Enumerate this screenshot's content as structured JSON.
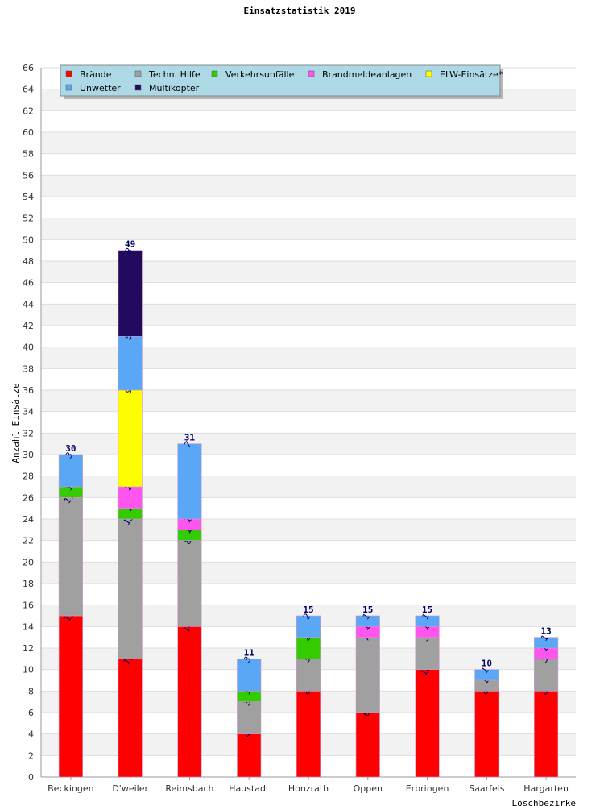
{
  "chart_data": {
    "type": "bar",
    "stacked": true,
    "title": "Einsatzstatistik 2019",
    "ylabel": "Anzahl Einsätze",
    "xlabel": "Löschbezirke",
    "ylim": [
      0,
      66
    ],
    "ytick_step": 2,
    "grid": true,
    "legend_position": "top-left",
    "categories": [
      "Beckingen",
      "D'weiler",
      "Reimsbach",
      "Haustadt",
      "Honzrath",
      "Oppen",
      "Erbringen",
      "Saarfels",
      "Hargarten"
    ],
    "totals": [
      "30",
      "49",
      "31",
      "11",
      "15",
      "15",
      "15",
      "10",
      "13"
    ],
    "series": [
      {
        "name": "Brände",
        "color": "#ff0000",
        "values": [
          15,
          11,
          14,
          4,
          8,
          6,
          10,
          8,
          8
        ]
      },
      {
        "name": "Techn. Hilfe",
        "color": "#a0a0a0",
        "values": [
          11,
          13,
          8,
          3,
          3,
          7,
          3,
          1,
          3
        ]
      },
      {
        "name": "Verkehrsunfälle",
        "color": "#33cc00",
        "values": [
          1,
          1,
          1,
          1,
          2,
          0,
          0,
          0,
          0
        ]
      },
      {
        "name": "Brandmeldeanlagen",
        "color": "#ff55ee",
        "values": [
          0,
          2,
          1,
          0,
          0,
          1,
          1,
          0,
          1
        ]
      },
      {
        "name": "ELW-Einsätze*",
        "color": "#ffff00",
        "values": [
          0,
          9,
          0,
          0,
          0,
          0,
          0,
          0,
          0
        ]
      },
      {
        "name": "Unwetter",
        "color": "#5aa8f5",
        "values": [
          3,
          5,
          7,
          3,
          2,
          1,
          1,
          1,
          1
        ]
      },
      {
        "name": "Multikopter",
        "color": "#220a5e",
        "values": [
          0,
          8,
          0,
          0,
          0,
          0,
          0,
          0,
          0
        ]
      }
    ]
  }
}
